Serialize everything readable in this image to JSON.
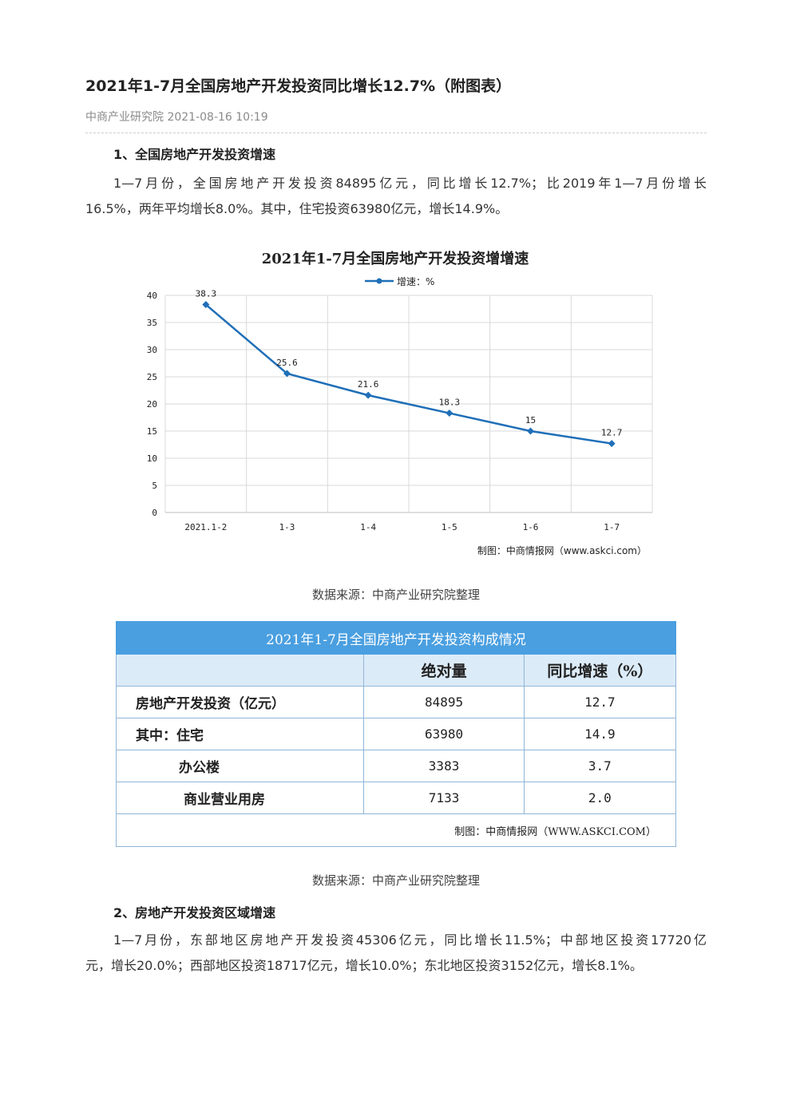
{
  "article": {
    "title": "2021年1-7月全国房地产开发投资同比增长12.7%（附图表）",
    "meta": "中商产业研究院 2021-08-16 10:19"
  },
  "section1": {
    "heading": "1、全国房地产开发投资增速",
    "para_line1": "1—7月份，全国房地产开发投资84895亿元，同比增长12.7%；比2019年1—7月份增长",
    "para_line2": "16.5%，两年平均增长8.0%。其中，住宅投资63980亿元，增长14.9%。"
  },
  "chart_data": {
    "type": "line",
    "title": "2021年1-7月全国房地产开发投资增增速",
    "legend": "增速：%",
    "legend_position": "top",
    "categories": [
      "2021.1-2",
      "1-3",
      "1-4",
      "1-5",
      "1-6",
      "1-7"
    ],
    "series": [
      {
        "name": "增速：%",
        "values": [
          38.3,
          25.6,
          21.6,
          18.3,
          15,
          12.7
        ]
      }
    ],
    "ylim": [
      0,
      40
    ],
    "yticks": [
      0,
      5,
      10,
      15,
      20,
      25,
      30,
      35,
      40
    ],
    "grid": true,
    "credit": "制图：中商情报网（www.askci.com）",
    "series_color": "#1f6fb8"
  },
  "caption1": "数据来源：中商产业研究院整理",
  "table": {
    "title": "2021年1-7月全国房地产开发投资构成情况",
    "headers": [
      "",
      "绝对量",
      "同比增速（%）"
    ],
    "rows": [
      {
        "label": "房地产开发投资（亿元）",
        "value": "84895",
        "growth": "12.7"
      },
      {
        "label": "其中：住宅",
        "value": "63980",
        "growth": "14.9"
      },
      {
        "label": "办公楼",
        "value": "3383",
        "growth": "3.7"
      },
      {
        "label": "商业营业用房",
        "value": "7133",
        "growth": "2.0"
      }
    ],
    "credit": "制图：中商情报网（WWW.ASKCI.COM）",
    "header_color": "#4a9fe0"
  },
  "caption2": "数据来源：中商产业研究院整理",
  "section2": {
    "heading": "2、房地产开发投资区域增速",
    "para_line1": "1—7月份，东部地区房地产开发投资45306亿元，同比增长11.5%；中部地区投资17720亿",
    "para_line2": "元，增长20.0%；西部地区投资18717亿元，增长10.0%；东北地区投资3152亿元，增长8.1%。"
  }
}
